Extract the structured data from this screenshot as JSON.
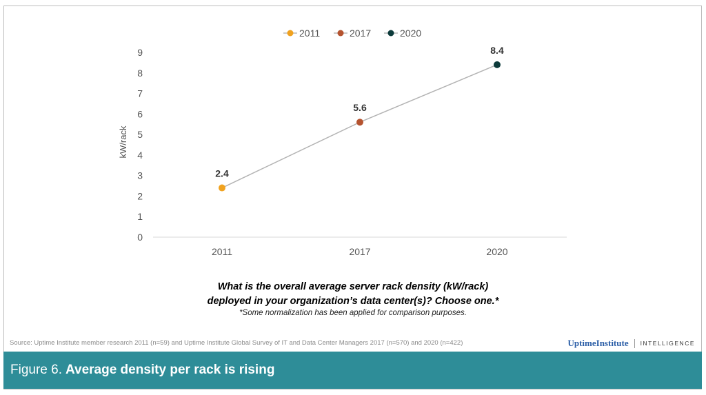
{
  "chart_data": {
    "type": "line",
    "categories": [
      "2011",
      "2017",
      "2020"
    ],
    "values": [
      2.4,
      5.6,
      8.4
    ],
    "point_colors": [
      "#f0a21f",
      "#b5532f",
      "#0d3b3b"
    ],
    "line_color": "#b3b3b3",
    "data_labels": [
      "2.4",
      "5.6",
      "8.4"
    ],
    "legend": [
      {
        "name": "2011",
        "color": "#f0a21f"
      },
      {
        "name": "2017",
        "color": "#b5532f"
      },
      {
        "name": "2020",
        "color": "#0d3b3b"
      }
    ],
    "legend_position": "top-center",
    "ylabel": "kW/rack",
    "yticks": [
      "0",
      "1",
      "2",
      "3",
      "4",
      "5",
      "6",
      "7",
      "8",
      "9"
    ],
    "ylim": [
      0,
      9
    ],
    "grid": false
  },
  "question": {
    "line1": "What is the overall average server rack density (kW/rack)",
    "line2": "deployed in your organization’s data center(s)? Choose one.*",
    "note": "*Some normalization has been applied for comparison purposes."
  },
  "source": "Source: Uptime Institute member research 2011 (n=59) and Uptime Institute Global Survey of IT and Data Center Managers 2017 (n=570) and 2020 (n=422)",
  "brand": {
    "name": "UptimeInstitute",
    "tag": "INTELLIGENCE"
  },
  "banner": {
    "prefix": "Figure 6.",
    "title": "Average density per rack is rising"
  }
}
